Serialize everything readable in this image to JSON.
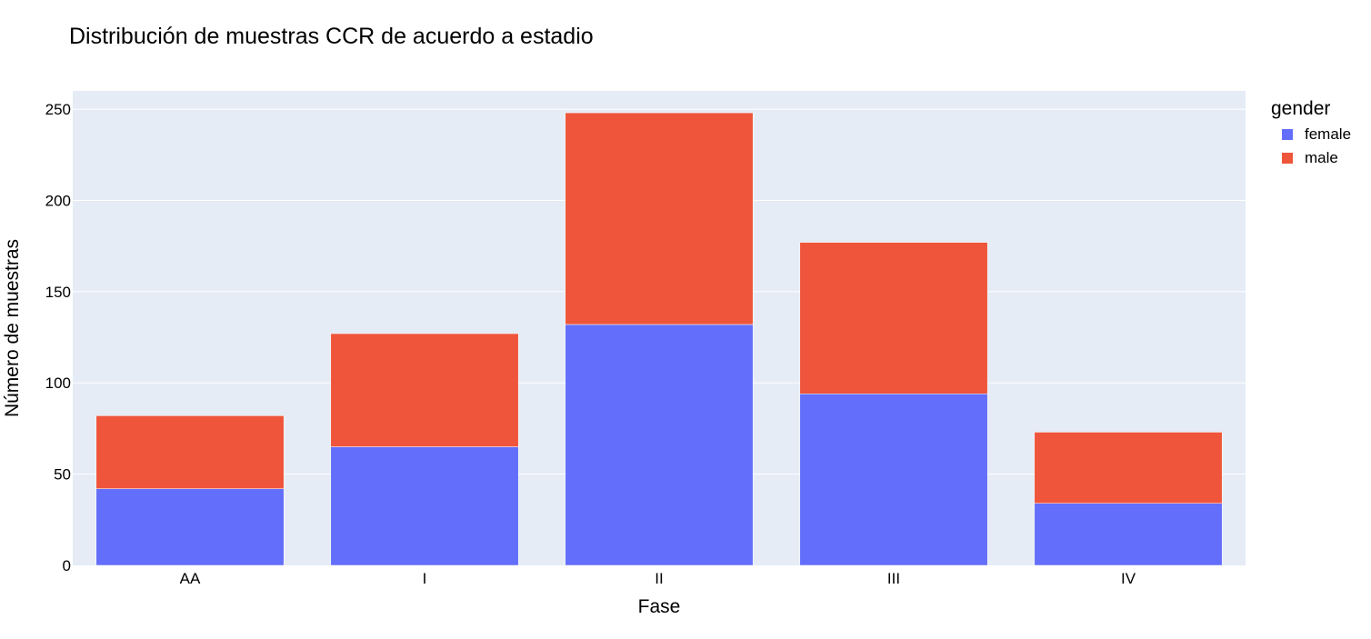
{
  "chart_data": {
    "type": "bar",
    "barmode": "stack",
    "title": "Distribución de muestras CCR de acuerdo a estadio",
    "xlabel": "Fase",
    "ylabel": "Número de muestras",
    "categories": [
      "AA",
      "I",
      "II",
      "III",
      "IV"
    ],
    "series": [
      {
        "name": "female",
        "color": "#636efa",
        "values": [
          42,
          65,
          132,
          94,
          34
        ]
      },
      {
        "name": "male",
        "color": "#ef553b",
        "values": [
          40,
          62,
          116,
          83,
          39
        ]
      }
    ],
    "ylim": [
      0,
      260
    ],
    "yticks": [
      0,
      50,
      100,
      150,
      200,
      250
    ],
    "legend": {
      "title": "gender",
      "placement": "top-right-outside"
    },
    "grid": true,
    "plot_background": "#e5ecf6"
  }
}
